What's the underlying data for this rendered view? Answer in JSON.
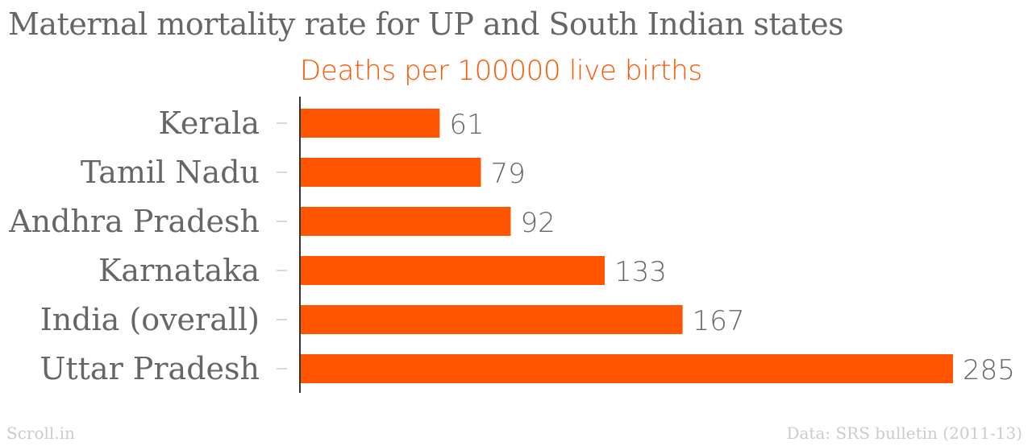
{
  "chart_data": {
    "type": "bar",
    "orientation": "horizontal",
    "title": "Maternal mortality rate for UP and South Indian states",
    "subtitle": "Deaths per 100000 live births",
    "categories": [
      "Kerala",
      "Tamil Nadu",
      "Andhra Pradesh",
      "Karnataka",
      "India (overall)",
      "Uttar Pradesh"
    ],
    "values": [
      61,
      79,
      92,
      133,
      167,
      285
    ],
    "xlim": [
      0,
      285
    ],
    "grid": false,
    "bar_color": "#ff5500"
  },
  "footer": {
    "source_brand": "Scroll.in",
    "data_source": "Data: SRS bulletin (2011-13)"
  }
}
